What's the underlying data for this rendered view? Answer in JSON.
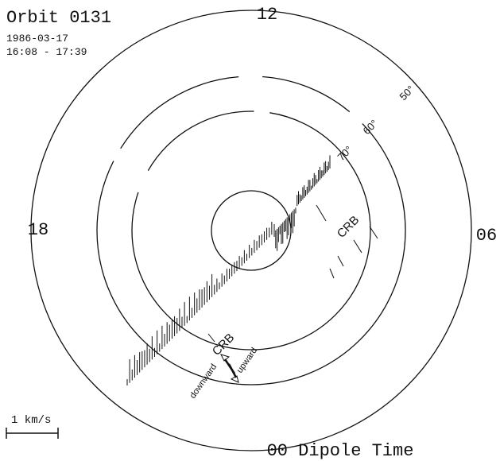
{
  "header": {
    "title": "Orbit 0131",
    "date": "1986-03-17",
    "time_range": "16:08 - 17:39"
  },
  "clock_labels": {
    "top": "12",
    "left": "18",
    "right": "06",
    "bottom": "00 Dipole Time"
  },
  "latitude_labels": [
    "50°",
    "60°",
    "70°"
  ],
  "annotations": {
    "crb_upper": "CRB",
    "crb_lower": "CRB",
    "downward": "downward",
    "upward": "upward"
  },
  "scale_label": "1 km/s"
}
